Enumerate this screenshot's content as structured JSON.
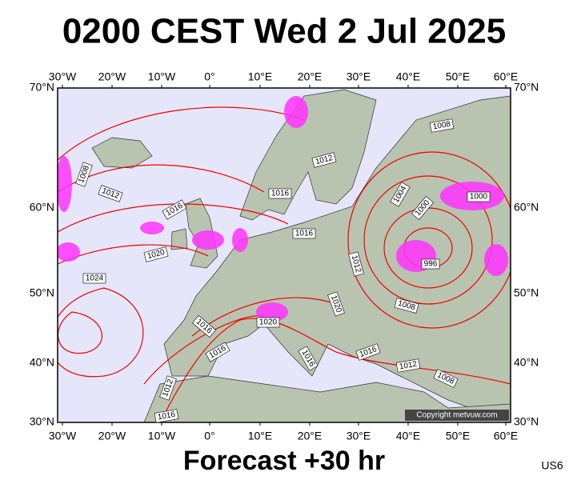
{
  "header": {
    "title": "0200 CEST Wed 2 Jul 2025"
  },
  "map": {
    "lon_labels": [
      "30°W",
      "20°W",
      "10°W",
      "0°",
      "10°E",
      "20°E",
      "30°E",
      "40°E",
      "50°E",
      "60°E"
    ],
    "lat_labels": [
      "70°N",
      "60°N",
      "50°N",
      "40°N",
      "30°N"
    ],
    "isobar_labels": [
      "1008",
      "1012",
      "1016",
      "1020",
      "1024",
      "1016",
      "1012",
      "1016",
      "1008",
      "1004",
      "1000",
      "1000",
      "996",
      "1012",
      "1020",
      "1008",
      "1016",
      "1020",
      "1016",
      "1016",
      "1016",
      "1012",
      "1008",
      "1012",
      "1016"
    ],
    "copyright": "Copyright metvuw.com"
  },
  "footer": {
    "forecast": "Forecast +30 hr",
    "code": "US6"
  }
}
